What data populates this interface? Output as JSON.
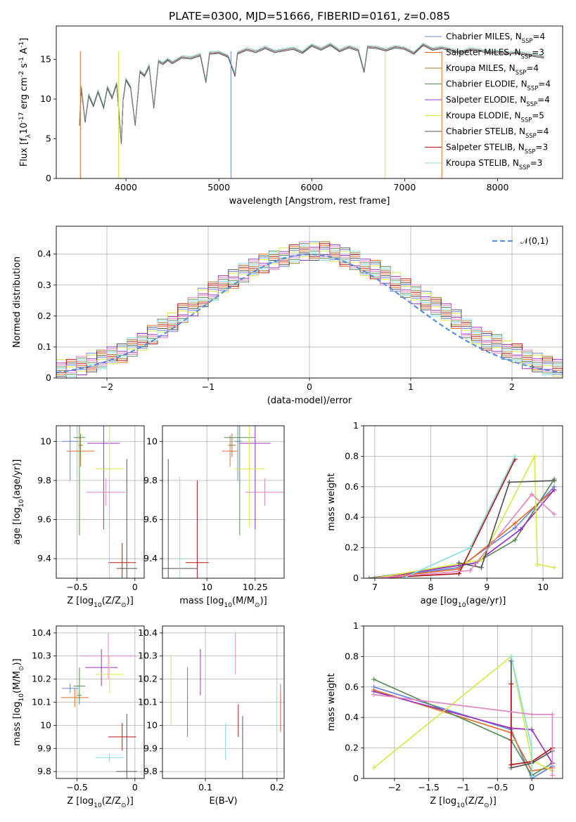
{
  "title": "PLATE=0300, MJD=51666, FIBERID=0161, z=0.085",
  "legend": [
    {
      "name": "Chabrier MILES, N$_{SSP}$=4",
      "text": "Chabrier MILES, N",
      "nssp": "4",
      "color": "#6788d8"
    },
    {
      "name": "Salpeter MILES, N$_{SSP}$=3",
      "text": "Salpeter MILES, N",
      "nssp": "3",
      "color": "#e0702a"
    },
    {
      "name": "Kroupa MILES, N$_{SSP}$=4",
      "text": "Kroupa MILES, N",
      "nssp": "4",
      "color": "#9c7a30"
    },
    {
      "name": "Chabrier ELODIE, N$_{SSP}$=4",
      "text": "Chabrier ELODIE, N",
      "nssp": "4",
      "color": "#5a8a5a"
    },
    {
      "name": "Salpeter ELODIE, N$_{SSP}$=4",
      "text": "Salpeter ELODIE, N",
      "nssp": "4",
      "color": "#9a32c0"
    },
    {
      "name": "Kroupa ELODIE, N$_{SSP}$=5",
      "text": "Kroupa ELODIE, N",
      "nssp": "5",
      "color": "#d8e84a"
    },
    {
      "name": "Chabrier STELIB, N$_{SSP}$=4",
      "text": "Chabrier STELIB, N",
      "nssp": "4",
      "color": "#555555"
    },
    {
      "name": "Salpeter STELIB, N$_{SSP}$=3",
      "text": "Salpeter STELIB, N",
      "nssp": "3",
      "color": "#b01818"
    },
    {
      "name": "Kroupa STELIB, N$_{SSP}$=3",
      "text": "Kroupa STELIB, N",
      "nssp": "3",
      "color": "#88dde0"
    }
  ],
  "extra_colors": {
    "pink": "#e088c0",
    "data": "#7a7a7a"
  },
  "chart_data": [
    {
      "id": "spectrum",
      "type": "line",
      "xlabel": "wavelength [Angstrom, rest frame]",
      "ylabel": "Flux [f$_\\lambda$10$^{-17}$ erg cm$^{-2}$ s$^{-1}$ A$^{-1}$]",
      "xlim": [
        3250,
        8700
      ],
      "ylim": [
        0,
        19.2
      ],
      "xticks": [
        4000,
        5000,
        6000,
        7000,
        8000
      ],
      "yticks": [
        0,
        5,
        10,
        15
      ],
      "series": [
        {
          "x": [
            3500,
            3520,
            3560,
            3600,
            3650,
            3700,
            3760,
            3800,
            3850,
            3900,
            3950,
            3970,
            4000,
            4050,
            4100,
            4150,
            4200,
            4250,
            4300,
            4350,
            4400,
            4450,
            4500,
            4600,
            4700,
            4800,
            4861,
            4900,
            5000,
            5100,
            5175,
            5200,
            5300,
            5400,
            5500,
            5600,
            5700,
            5800,
            5900,
            6000,
            6100,
            6200,
            6300,
            6400,
            6500,
            6563,
            6600,
            6700,
            6800,
            6900,
            7000,
            7100,
            7200,
            7300,
            7400,
            7500,
            7600,
            7700,
            7800,
            7900,
            8000,
            8100,
            8200,
            8300,
            8400,
            8500
          ],
          "y": [
            6.8,
            11.5,
            7.2,
            10.5,
            9.2,
            11.0,
            9.0,
            11.5,
            10.2,
            12.0,
            4.5,
            10.0,
            12.5,
            11.5,
            6.8,
            13.5,
            13.0,
            14.2,
            9.0,
            14.8,
            14.5,
            15.0,
            14.6,
            15.3,
            15.2,
            15.6,
            12.2,
            15.8,
            15.9,
            15.4,
            13.0,
            15.8,
            16.3,
            16.0,
            16.5,
            16.0,
            16.2,
            16.4,
            15.9,
            16.8,
            16.3,
            16.9,
            16.1,
            16.6,
            16.2,
            13.5,
            16.6,
            16.5,
            16.2,
            16.6,
            16.4,
            15.8,
            16.9,
            16.3,
            16.5,
            16.2,
            15.9,
            16.3,
            16.2,
            15.9,
            16.0,
            15.8,
            15.9,
            15.7,
            15.5,
            15.3
          ]
        }
      ]
    },
    {
      "id": "residuals",
      "type": "bar",
      "xlabel": "(data-model)/error",
      "ylabel": "Normed distribution",
      "xlim": [
        -2.5,
        2.5
      ],
      "ylim": [
        0,
        0.49
      ],
      "xticks": [
        -2,
        -1,
        0,
        1,
        2
      ],
      "yticks": [
        0.0,
        0.1,
        0.2,
        0.3,
        0.4
      ],
      "legend": "$\\mathcal{N}(0,1)$",
      "x": [
        -2.5,
        -2.4,
        -2.3,
        -2.2,
        -2.1,
        -2.0,
        -1.9,
        -1.8,
        -1.7,
        -1.6,
        -1.5,
        -1.4,
        -1.3,
        -1.2,
        -1.1,
        -1.0,
        -0.9,
        -0.8,
        -0.7,
        -0.6,
        -0.5,
        -0.4,
        -0.3,
        -0.2,
        -0.1,
        0.0,
        0.1,
        0.2,
        0.3,
        0.4,
        0.5,
        0.6,
        0.7,
        0.8,
        0.9,
        1.0,
        1.1,
        1.2,
        1.3,
        1.4,
        1.5,
        1.6,
        1.7,
        1.8,
        1.9,
        2.0,
        2.1,
        2.2,
        2.3,
        2.4,
        2.5
      ],
      "values": [
        0.03,
        0.03,
        0.04,
        0.05,
        0.06,
        0.07,
        0.08,
        0.1,
        0.12,
        0.14,
        0.16,
        0.18,
        0.21,
        0.23,
        0.26,
        0.28,
        0.3,
        0.32,
        0.34,
        0.36,
        0.37,
        0.38,
        0.39,
        0.4,
        0.41,
        0.41,
        0.41,
        0.4,
        0.39,
        0.38,
        0.36,
        0.35,
        0.33,
        0.31,
        0.29,
        0.27,
        0.25,
        0.23,
        0.21,
        0.19,
        0.16,
        0.14,
        0.12,
        0.11,
        0.09,
        0.08,
        0.06,
        0.05,
        0.04,
        0.03,
        0.03
      ]
    },
    {
      "id": "age-vs-Z",
      "type": "scatter",
      "xlabel": "Z [log$_{10}$($Z/Z_\\odot$)]",
      "ylabel": "age  [log$_{10}$($age/yr$)]",
      "xlim": [
        -0.68,
        0.08
      ],
      "ylim": [
        9.3,
        10.08
      ],
      "xticks": [
        -0.5,
        0.0
      ],
      "yticks": [
        9.4,
        9.6,
        9.8,
        10.0
      ],
      "points": [
        {
          "x": -0.56,
          "y": 10.0,
          "xerr": 0.07,
          "yerr": 0.2,
          "c": 0
        },
        {
          "x": -0.47,
          "y": 9.95,
          "xerr": 0.12,
          "yerr": 0.08,
          "c": 1
        },
        {
          "x": -0.47,
          "y": 9.98,
          "xerr": 0.02,
          "yerr": 0.06,
          "c": 2
        },
        {
          "x": -0.48,
          "y": 10.02,
          "xerr": 0.05,
          "yerr": 0.5,
          "c": 3
        },
        {
          "x": -0.27,
          "y": 9.99,
          "xerr": 0.14,
          "yerr": 0.44,
          "c": 4
        },
        {
          "x": -0.22,
          "y": 9.86,
          "xerr": 0.12,
          "yerr": 0.3,
          "c": 5
        },
        {
          "x": -0.07,
          "y": 9.35,
          "xerr": 0.09,
          "yerr": 0.56,
          "c": 6
        },
        {
          "x": -0.11,
          "y": 9.38,
          "xerr": 0.12,
          "yerr": 0.1,
          "c": 7
        },
        {
          "x": -0.22,
          "y": 9.4,
          "xerr": 0.01,
          "yerr": 0.42,
          "c": 8
        },
        {
          "x": -0.25,
          "y": 9.74,
          "xerr": 0.17,
          "yerr": 0.07,
          "c": 9
        }
      ]
    },
    {
      "id": "age-vs-mass",
      "type": "scatter",
      "xlabel": "mass [log$_{10}$($M/M_\\odot$)]",
      "ylabel": "",
      "xlim": [
        9.77,
        10.4
      ],
      "ylim": [
        9.3,
        10.08
      ],
      "xticks": [
        10.0,
        10.25
      ],
      "yticks": [
        9.4,
        9.6,
        9.8,
        10.0
      ],
      "points": [
        {
          "x": 10.16,
          "y": 10.0,
          "xerr": 0.02,
          "yerr": 0.2,
          "c": 0
        },
        {
          "x": 10.12,
          "y": 9.95,
          "xerr": 0.04,
          "yerr": 0.08,
          "c": 1
        },
        {
          "x": 10.13,
          "y": 9.98,
          "xerr": 0.02,
          "yerr": 0.06,
          "c": 2
        },
        {
          "x": 10.17,
          "y": 10.02,
          "xerr": 0.08,
          "yerr": 0.5,
          "c": 3
        },
        {
          "x": 10.25,
          "y": 9.99,
          "xerr": 0.08,
          "yerr": 0.44,
          "c": 4
        },
        {
          "x": 10.22,
          "y": 9.86,
          "xerr": 0.08,
          "yerr": 0.3,
          "c": 5
        },
        {
          "x": 9.8,
          "y": 9.35,
          "xerr": 0.15,
          "yerr": 0.56,
          "c": 6
        },
        {
          "x": 9.95,
          "y": 9.38,
          "xerr": 0.06,
          "yerr": 0.42,
          "c": 7
        },
        {
          "x": 9.86,
          "y": 9.4,
          "xerr": 0.02,
          "yerr": 0.42,
          "c": 8
        },
        {
          "x": 10.3,
          "y": 9.74,
          "xerr": 0.1,
          "yerr": 0.07,
          "c": 9
        }
      ]
    },
    {
      "id": "mass-weight-vs-age",
      "type": "line",
      "xlabel": "age  [log$_{10}$($age/yr$)]",
      "ylabel": "mass weight",
      "xlim": [
        6.8,
        10.35
      ],
      "ylim": [
        0,
        1.0
      ],
      "xticks": [
        7,
        8,
        9,
        10
      ],
      "yticks": [
        0.0,
        0.2,
        0.4,
        0.6,
        0.8,
        1.0
      ],
      "series": [
        {
          "c": 0,
          "x": [
            7.0,
            8.5,
            9.5,
            10.2
          ],
          "y": [
            0.0,
            0.07,
            0.33,
            0.6
          ]
        },
        {
          "c": 1,
          "x": [
            7.0,
            8.5,
            9.5,
            10.2
          ],
          "y": [
            0.0,
            0.06,
            0.36,
            0.58
          ]
        },
        {
          "c": 3,
          "x": [
            6.9,
            8.8,
            9.5,
            10.2
          ],
          "y": [
            0.0,
            0.1,
            0.25,
            0.65
          ]
        },
        {
          "c": 4,
          "x": [
            7.0,
            8.8,
            9.6,
            10.2
          ],
          "y": [
            0.0,
            0.1,
            0.32,
            0.58
          ]
        },
        {
          "c": 5,
          "x": [
            7.0,
            8.9,
            9.85,
            9.9,
            10.2
          ],
          "y": [
            0.0,
            0.12,
            0.8,
            0.09,
            0.07
          ]
        },
        {
          "c": 6,
          "x": [
            8.5,
            8.9,
            9.4,
            10.2
          ],
          "y": [
            0.1,
            0.07,
            0.63,
            0.64
          ]
        },
        {
          "c": 7,
          "x": [
            7.0,
            8.5,
            9.5
          ],
          "y": [
            0.0,
            0.03,
            0.78
          ]
        },
        {
          "c": 8,
          "x": [
            7.5,
            8.7,
            9.5
          ],
          "y": [
            0.0,
            0.2,
            0.8
          ]
        },
        {
          "c": 9,
          "x": [
            7.0,
            8.7,
            9.8,
            10.2
          ],
          "y": [
            0.0,
            0.05,
            0.55,
            0.42
          ]
        }
      ]
    },
    {
      "id": "mass-vs-Z",
      "type": "scatter",
      "xlabel": "Z [log$_{10}$($Z/Z_\\odot$)]",
      "ylabel": "mass [log$_{10}$($M/M_\\odot$)]",
      "xlim": [
        -0.68,
        0.08
      ],
      "ylim": [
        9.77,
        10.43
      ],
      "xticks": [
        -0.5,
        0.0
      ],
      "yticks": [
        9.8,
        9.9,
        10.0,
        10.1,
        10.2,
        10.3,
        10.4
      ],
      "points": [
        {
          "x": -0.56,
          "y": 10.16,
          "xerr": 0.07,
          "yerr": 0.02,
          "c": 0
        },
        {
          "x": -0.52,
          "y": 10.12,
          "xerr": 0.12,
          "yerr": 0.04,
          "c": 1
        },
        {
          "x": -0.48,
          "y": 10.13,
          "xerr": 0.02,
          "yerr": 0.02,
          "c": 2
        },
        {
          "x": -0.48,
          "y": 10.17,
          "xerr": 0.05,
          "yerr": 0.08,
          "c": 3
        },
        {
          "x": -0.29,
          "y": 10.25,
          "xerr": 0.14,
          "yerr": 0.08,
          "c": 4
        },
        {
          "x": -0.22,
          "y": 10.22,
          "xerr": 0.12,
          "yerr": 0.08,
          "c": 5
        },
        {
          "x": -0.07,
          "y": 9.8,
          "xerr": 0.09,
          "yerr": 0.25,
          "c": 6
        },
        {
          "x": -0.11,
          "y": 9.95,
          "xerr": 0.12,
          "yerr": 0.06,
          "c": 7
        },
        {
          "x": -0.22,
          "y": 9.86,
          "xerr": 0.12,
          "yerr": 0.02,
          "c": 8
        },
        {
          "x": -0.23,
          "y": 10.3,
          "xerr": 0.24,
          "yerr": 0.1,
          "c": 9
        }
      ]
    },
    {
      "id": "mass-vs-ebv",
      "type": "scatter",
      "xlabel": "E(B-V)",
      "ylabel": "",
      "xlim": [
        0.04,
        0.21
      ],
      "ylim": [
        9.77,
        10.43
      ],
      "xticks": [
        0.1,
        0.2
      ],
      "yticks": [
        9.8,
        9.9,
        10.0,
        10.1,
        10.2,
        10.3,
        10.4
      ],
      "points": [
        {
          "x": 0.205,
          "y": 10.08,
          "xerr": 0,
          "yerr": 0.1,
          "c": 0
        },
        {
          "x": 0.205,
          "y": 10.06,
          "xerr": 0,
          "yerr": 0.09,
          "c": 1
        },
        {
          "x": 0.075,
          "y": 10.1,
          "xerr": 0,
          "yerr": 0.15,
          "c": 3
        },
        {
          "x": 0.093,
          "y": 10.23,
          "xerr": 0,
          "yerr": 0.1,
          "c": 4
        },
        {
          "x": 0.052,
          "y": 10.15,
          "xerr": 0,
          "yerr": 0.15,
          "c": 5
        },
        {
          "x": 0.152,
          "y": 9.9,
          "xerr": 0,
          "yerr": 0.14,
          "c": 6
        },
        {
          "x": 0.146,
          "y": 10.02,
          "xerr": 0,
          "yerr": 0.07,
          "c": 7
        },
        {
          "x": 0.128,
          "y": 9.93,
          "xerr": 0,
          "yerr": 0.08,
          "c": 8
        },
        {
          "x": 0.142,
          "y": 10.31,
          "xerr": 0,
          "yerr": 0.09,
          "c": 9
        }
      ]
    },
    {
      "id": "mass-weight-vs-Z",
      "type": "line",
      "xlabel": "Z [log$_{10}$($Z/Z_\\odot$)]",
      "ylabel": "mass weight",
      "xlim": [
        -2.45,
        0.45
      ],
      "ylim": [
        0,
        1.0
      ],
      "xticks": [
        -2.0,
        -1.5,
        -1.0,
        -0.5,
        0.0
      ],
      "yticks": [
        0.0,
        0.2,
        0.4,
        0.6,
        0.8,
        1.0
      ],
      "series": [
        {
          "c": 0,
          "x": [
            -2.3,
            -0.3,
            0.0,
            0.3
          ],
          "y": [
            0.6,
            0.32,
            0.0,
            0.08
          ]
        },
        {
          "c": 1,
          "x": [
            -2.3,
            -0.3,
            0.0,
            0.3
          ],
          "y": [
            0.58,
            0.3,
            0.05,
            0.07
          ]
        },
        {
          "c": 3,
          "x": [
            -2.3,
            -0.3,
            0.0,
            0.3
          ],
          "y": [
            0.65,
            0.25,
            0.02,
            0.1
          ]
        },
        {
          "c": 4,
          "x": [
            -2.3,
            -0.3,
            0.0,
            0.3
          ],
          "y": [
            0.57,
            0.33,
            0.32,
            0.1
          ]
        },
        {
          "c": 5,
          "x": [
            -2.3,
            -0.3,
            0.0,
            0.3
          ],
          "y": [
            0.07,
            0.8,
            0.12,
            0.05
          ]
        },
        {
          "c": 6,
          "x": [
            -0.3,
            -0.3,
            0.0,
            0.3
          ],
          "y": [
            0.77,
            0.07,
            0.1,
            0.18
          ]
        },
        {
          "c": 7,
          "x": [
            -0.3,
            -0.3,
            0.0,
            0.3
          ],
          "y": [
            0.62,
            0.09,
            0.11,
            0.2
          ]
        },
        {
          "c": 8,
          "x": [
            -0.3,
            0.0,
            0.0
          ],
          "y": [
            0.8,
            0.2,
            0.01
          ]
        },
        {
          "c": 9,
          "x": [
            -2.3,
            0.0,
            0.3,
            0.3
          ],
          "y": [
            0.55,
            0.42,
            0.42,
            0.02
          ]
        }
      ]
    }
  ]
}
